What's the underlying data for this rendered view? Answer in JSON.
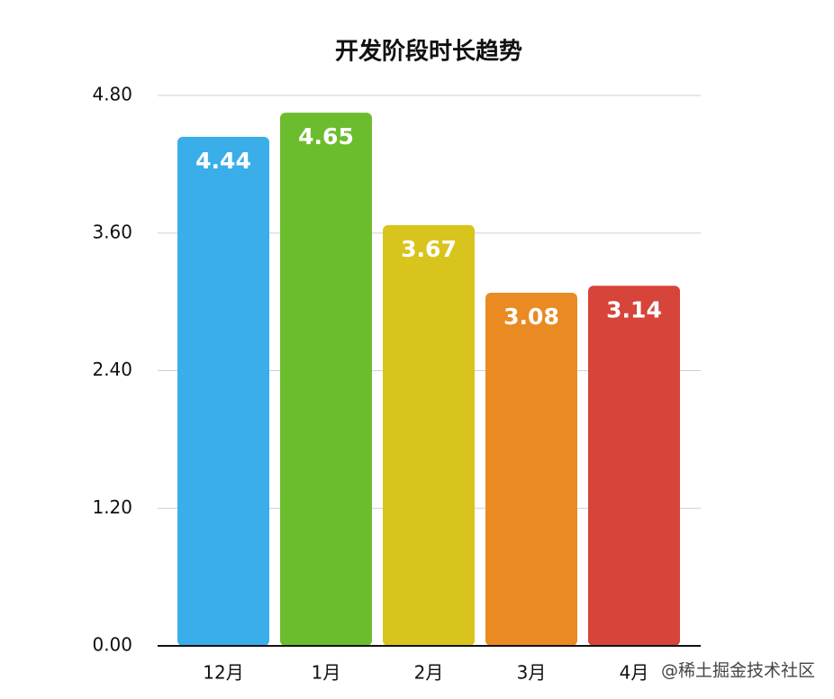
{
  "chart_data": {
    "type": "bar",
    "title": "开发阶段时长趋势",
    "categories": [
      "12月",
      "1月",
      "2月",
      "3月",
      "4月"
    ],
    "values": [
      4.44,
      4.65,
      3.67,
      3.08,
      3.14
    ],
    "colors": [
      "#3aaee8",
      "#6bbd2e",
      "#d9c41d",
      "#ea8a22",
      "#d6443a"
    ],
    "ylim": [
      0,
      4.8
    ],
    "yticks": [
      {
        "value": 0,
        "label": "0.00"
      },
      {
        "value": 1.2,
        "label": "1.20"
      },
      {
        "value": 2.4,
        "label": "2.40"
      },
      {
        "value": 3.6,
        "label": "3.60"
      },
      {
        "value": 4.8,
        "label": "4.80"
      }
    ],
    "grid": true,
    "watermark": "@稀土掘金技术社区"
  }
}
